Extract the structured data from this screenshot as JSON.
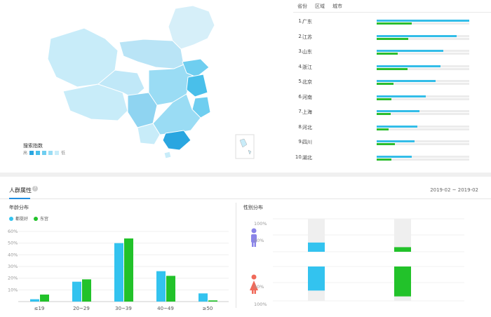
{
  "map": {
    "legend_title": "搜索指数",
    "legend_high": "高",
    "legend_low": "低",
    "legend_colors": [
      "#2aa6e0",
      "#49bfea",
      "#6fcef0",
      "#9adcf4",
      "#c8ecf9"
    ]
  },
  "ranking": {
    "tabs": [
      "省份",
      "区域",
      "城市"
    ],
    "items": [
      {
        "rank": "1.",
        "name": "广东",
        "blue": 1.0,
        "green": 0.38
      },
      {
        "rank": "2.",
        "name": "江苏",
        "blue": 0.86,
        "green": 0.34
      },
      {
        "rank": "3.",
        "name": "山东",
        "blue": 0.72,
        "green": 0.23
      },
      {
        "rank": "4.",
        "name": "浙江",
        "blue": 0.69,
        "green": 0.33
      },
      {
        "rank": "5.",
        "name": "北京",
        "blue": 0.64,
        "green": 0.18
      },
      {
        "rank": "6.",
        "name": "河南",
        "blue": 0.53,
        "green": 0.16
      },
      {
        "rank": "7.",
        "name": "上海",
        "blue": 0.46,
        "green": 0.15
      },
      {
        "rank": "8.",
        "name": "河北",
        "blue": 0.44,
        "green": 0.13
      },
      {
        "rank": "9.",
        "name": "四川",
        "blue": 0.41,
        "green": 0.2
      },
      {
        "rank": "10.",
        "name": "湖北",
        "blue": 0.38,
        "green": 0.16
      }
    ]
  },
  "section": {
    "title": "人群属性",
    "help": "?",
    "date_range": "2019-02 ~ 2019-02"
  },
  "age": {
    "title": "年龄分布",
    "legend": [
      {
        "label": "都挺好",
        "color": "#33c3ef"
      },
      {
        "label": "东宫",
        "color": "#22c22a"
      }
    ]
  },
  "gender": {
    "title": "性别分布",
    "labels": {
      "top_100": "100%",
      "top_50": "50%",
      "bot_50": "50%",
      "bot_100": "100%"
    },
    "male_icon": "male-person-icon",
    "female_icon": "female-person-icon",
    "colors": {
      "male": "#8a84e8",
      "female": "#f06a5a"
    },
    "values": {
      "male": [
        0.28,
        0.14
      ],
      "female": [
        0.7,
        0.87
      ]
    }
  },
  "chart_data": {
    "type": "bar",
    "categories": [
      "≤19",
      "20~29",
      "30~39",
      "40~49",
      "≥50"
    ],
    "series": [
      {
        "name": "都挺好",
        "values": [
          2,
          17,
          50,
          26,
          7
        ]
      },
      {
        "name": "东宫",
        "values": [
          6,
          19,
          54,
          22,
          1
        ]
      }
    ],
    "yticks": [
      "10%",
      "20%",
      "30%",
      "40%",
      "50%",
      "60%"
    ],
    "ylim": [
      0,
      60
    ],
    "grid": true
  }
}
